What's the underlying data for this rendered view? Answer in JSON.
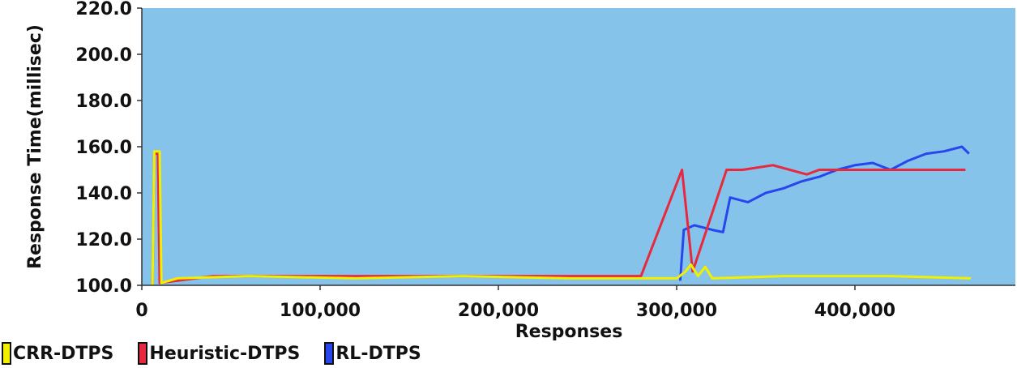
{
  "chart_data": {
    "type": "line",
    "title": "",
    "xlabel": "Responses",
    "ylabel": "Response Time(millisec)",
    "xlim": [
      0,
      490000
    ],
    "ylim": [
      100,
      220
    ],
    "x_ticks": [
      "0",
      "100,000",
      "200,000",
      "300,000",
      "400,000"
    ],
    "x_tick_values": [
      0,
      100000,
      200000,
      300000,
      400000
    ],
    "y_ticks": [
      "100.0",
      "120.0",
      "140.0",
      "160.0",
      "180.0",
      "200.0",
      "220.0"
    ],
    "y_tick_values": [
      100,
      120,
      140,
      160,
      180,
      200,
      220
    ],
    "plot_background": "#86c3ea",
    "grid": false,
    "legend_position": "bottom-left",
    "series": [
      {
        "name": "CRR-DTPS",
        "color": "#f0f000",
        "points": [
          [
            6000,
            100
          ],
          [
            7000,
            158
          ],
          [
            10000,
            158
          ],
          [
            11000,
            101
          ],
          [
            20000,
            103
          ],
          [
            60000,
            104
          ],
          [
            120000,
            103
          ],
          [
            180000,
            104
          ],
          [
            240000,
            103
          ],
          [
            300000,
            103
          ],
          [
            305000,
            106
          ],
          [
            308000,
            109
          ],
          [
            312000,
            104
          ],
          [
            316000,
            108
          ],
          [
            320000,
            103
          ],
          [
            360000,
            104
          ],
          [
            420000,
            104
          ],
          [
            465000,
            103
          ]
        ]
      },
      {
        "name": "Heuristic-DTPS",
        "color": "#e8283c",
        "points": [
          [
            6000,
            100
          ],
          [
            7000,
            157
          ],
          [
            9000,
            157
          ],
          [
            10000,
            101
          ],
          [
            40000,
            104
          ],
          [
            100000,
            104
          ],
          [
            160000,
            104
          ],
          [
            220000,
            104
          ],
          [
            280000,
            104
          ],
          [
            303000,
            150
          ],
          [
            309000,
            106
          ],
          [
            328000,
            150
          ],
          [
            331000,
            150
          ],
          [
            337000,
            150
          ],
          [
            354000,
            152
          ],
          [
            373000,
            148
          ],
          [
            380000,
            150
          ],
          [
            390000,
            150
          ],
          [
            399000,
            150
          ],
          [
            408000,
            150
          ],
          [
            418000,
            150
          ],
          [
            424000,
            150
          ],
          [
            446000,
            150
          ],
          [
            462000,
            150
          ]
        ]
      },
      {
        "name": "RL-DTPS",
        "color": "#2846ee",
        "points": [
          [
            302000,
            102
          ],
          [
            304000,
            124
          ],
          [
            310000,
            126
          ],
          [
            320000,
            124
          ],
          [
            326000,
            123
          ],
          [
            330000,
            138
          ],
          [
            340000,
            136
          ],
          [
            350000,
            140
          ],
          [
            360000,
            142
          ],
          [
            370000,
            145
          ],
          [
            380000,
            147
          ],
          [
            390000,
            150
          ],
          [
            400000,
            152
          ],
          [
            410000,
            153
          ],
          [
            420000,
            150
          ],
          [
            430000,
            154
          ],
          [
            440000,
            157
          ],
          [
            450000,
            158
          ],
          [
            460000,
            160
          ],
          [
            464000,
            157
          ]
        ]
      }
    ]
  }
}
